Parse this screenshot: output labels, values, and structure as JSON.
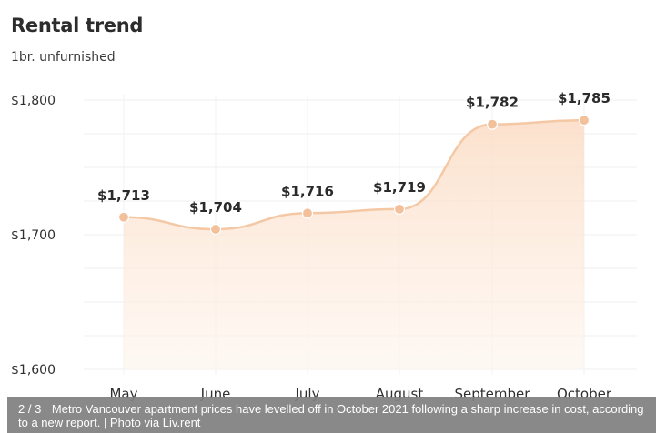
{
  "chart_data": {
    "type": "area",
    "title": "Rental trend",
    "subtitle": "1br. unfurnished",
    "categories": [
      "May",
      "June",
      "July",
      "August",
      "September",
      "October"
    ],
    "values": [
      1713,
      1704,
      1716,
      1719,
      1782,
      1785
    ],
    "data_labels": [
      "$1,713",
      "$1,704",
      "$1,716",
      "$1,719",
      "$1,782",
      "$1,785"
    ],
    "yticks": [
      1600,
      1700,
      1800
    ],
    "ytick_labels": [
      "$1,600",
      "$1,700",
      "$1,800"
    ],
    "ylim": [
      1600,
      1800
    ],
    "grid": true,
    "legend": "none",
    "colors": {
      "line": "#f4c8a4",
      "fill": "#fdebdc",
      "point": "#f2c09a"
    }
  },
  "caption": {
    "counter": "2 / 3",
    "text": "Metro Vancouver apartment prices have levelled off in October 2021 following a sharp increase in cost, according to a new report.",
    "credit": " | Photo via Liv.rent"
  }
}
